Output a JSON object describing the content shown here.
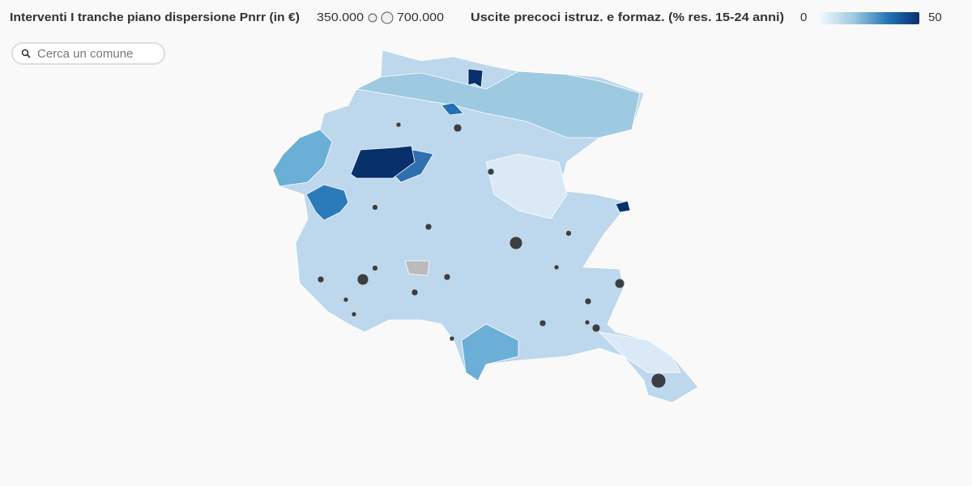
{
  "legend": {
    "size": {
      "title": "Interventi I tranche piano dispersione Pnrr (in €)",
      "values": [
        {
          "value": 350000,
          "label": "350.000"
        },
        {
          "value": 700000,
          "label": "700.000"
        }
      ]
    },
    "color": {
      "title": "Uscite precoci istruz. e formaz. (% res. 15-24 anni)",
      "min": 0,
      "max": 50,
      "colors": [
        "#f7fbff",
        "#08306b"
      ]
    }
  },
  "search": {
    "placeholder": "Cerca un comune"
  },
  "bubbles": {
    "color": "#2b2f33",
    "values": [
      900000,
      700000,
      1150000,
      500000,
      350000,
      230000,
      230000,
      175000,
      130000,
      230000,
      175000,
      130000,
      130000,
      230000,
      230000,
      175000,
      130000,
      230000,
      230000,
      130000,
      350000,
      130000
    ]
  }
}
